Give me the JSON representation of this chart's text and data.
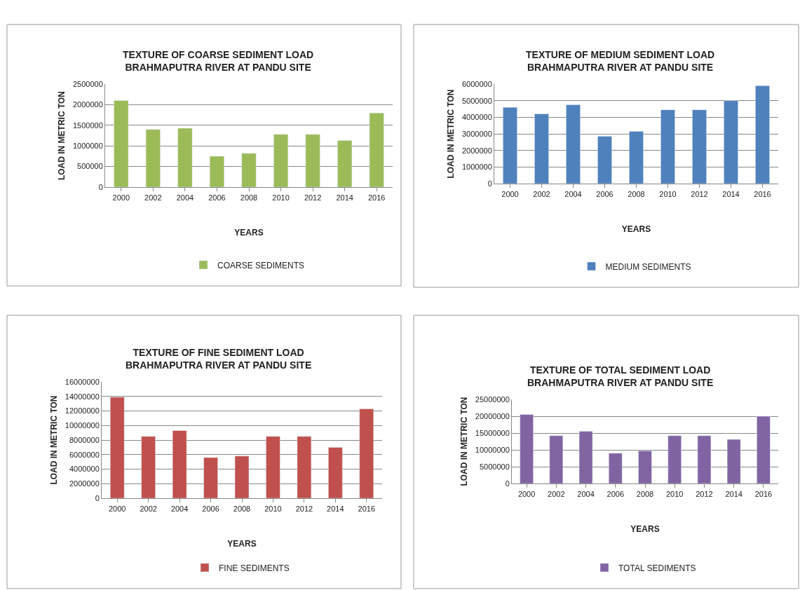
{
  "chart_data": [
    {
      "type": "bar",
      "title": "TEXTURE OF COARSE SEDIMENT LOAD\nBRAHMAPUTRA RIVER AT PANDU SITE",
      "xlabel": "YEARS",
      "ylabel": "LOAD IN METRIC TON",
      "categories": [
        "2000",
        "2002",
        "2004",
        "2006",
        "2008",
        "2010",
        "2012",
        "2014",
        "2016"
      ],
      "series": [
        {
          "name": "COARSE SEDIMENTS",
          "color": "#9bbb59",
          "values": [
            2100000,
            1400000,
            1430000,
            750000,
            820000,
            1280000,
            1280000,
            1130000,
            1800000
          ]
        }
      ],
      "ylim": [
        0,
        2500000
      ],
      "yticks": [
        0,
        500000,
        1000000,
        1500000,
        2000000,
        2500000
      ],
      "grid": "y",
      "legend": "bottom"
    },
    {
      "type": "bar",
      "title": "TEXTURE OF MEDIUM SEDIMENT LOAD\nBRAHMAPUTRA RIVER AT PANDU SITE",
      "xlabel": "YEARS",
      "ylabel": "LOAD IN METRIC TON",
      "categories": [
        "2000",
        "2002",
        "2004",
        "2006",
        "2008",
        "2010",
        "2012",
        "2014",
        "2016"
      ],
      "series": [
        {
          "name": "MEDIUM SEDIMENTS",
          "color": "#4f81bd",
          "values": [
            4600000,
            4200000,
            4750000,
            2850000,
            3150000,
            4450000,
            4450000,
            5000000,
            5900000
          ]
        }
      ],
      "ylim": [
        0,
        6000000
      ],
      "yticks": [
        0,
        1000000,
        2000000,
        3000000,
        4000000,
        5000000,
        6000000
      ],
      "grid": "y",
      "legend": "bottom"
    },
    {
      "type": "bar",
      "title": "TEXTURE OF FINE SEDIMENT LOAD\nBRAHMAPUTRA RIVER AT PANDU SITE",
      "xlabel": "YEARS",
      "ylabel": "LOAD IN METRIC TON",
      "categories": [
        "2000",
        "2002",
        "2004",
        "2006",
        "2008",
        "2010",
        "2012",
        "2014",
        "2016"
      ],
      "series": [
        {
          "name": "FINE SEDIMENTS",
          "color": "#c0504d",
          "values": [
            13900000,
            8500000,
            9300000,
            5600000,
            5800000,
            8500000,
            8500000,
            7000000,
            12300000
          ]
        }
      ],
      "ylim": [
        0,
        16000000
      ],
      "yticks": [
        0,
        2000000,
        4000000,
        6000000,
        8000000,
        10000000,
        12000000,
        14000000,
        16000000
      ],
      "grid": "y",
      "legend": "bottom"
    },
    {
      "type": "bar",
      "title": "TEXTURE OF TOTAL SEDIMENT LOAD\nBRAHMAPUTRA RIVER AT PANDU SITE",
      "xlabel": "YEARS",
      "ylabel": "LOAD IN METRIC TON",
      "categories": [
        "2000",
        "2002",
        "2004",
        "2006",
        "2008",
        "2010",
        "2012",
        "2014",
        "2016"
      ],
      "series": [
        {
          "name": "TOTAL SEDIMENTS",
          "color": "#8064a2",
          "values": [
            20500000,
            14200000,
            15500000,
            9000000,
            9700000,
            14200000,
            14200000,
            13100000,
            20000000
          ]
        }
      ],
      "ylim": [
        0,
        25000000
      ],
      "yticks": [
        0,
        5000000,
        10000000,
        15000000,
        20000000,
        25000000
      ],
      "grid": "y",
      "legend": "bottom"
    }
  ]
}
